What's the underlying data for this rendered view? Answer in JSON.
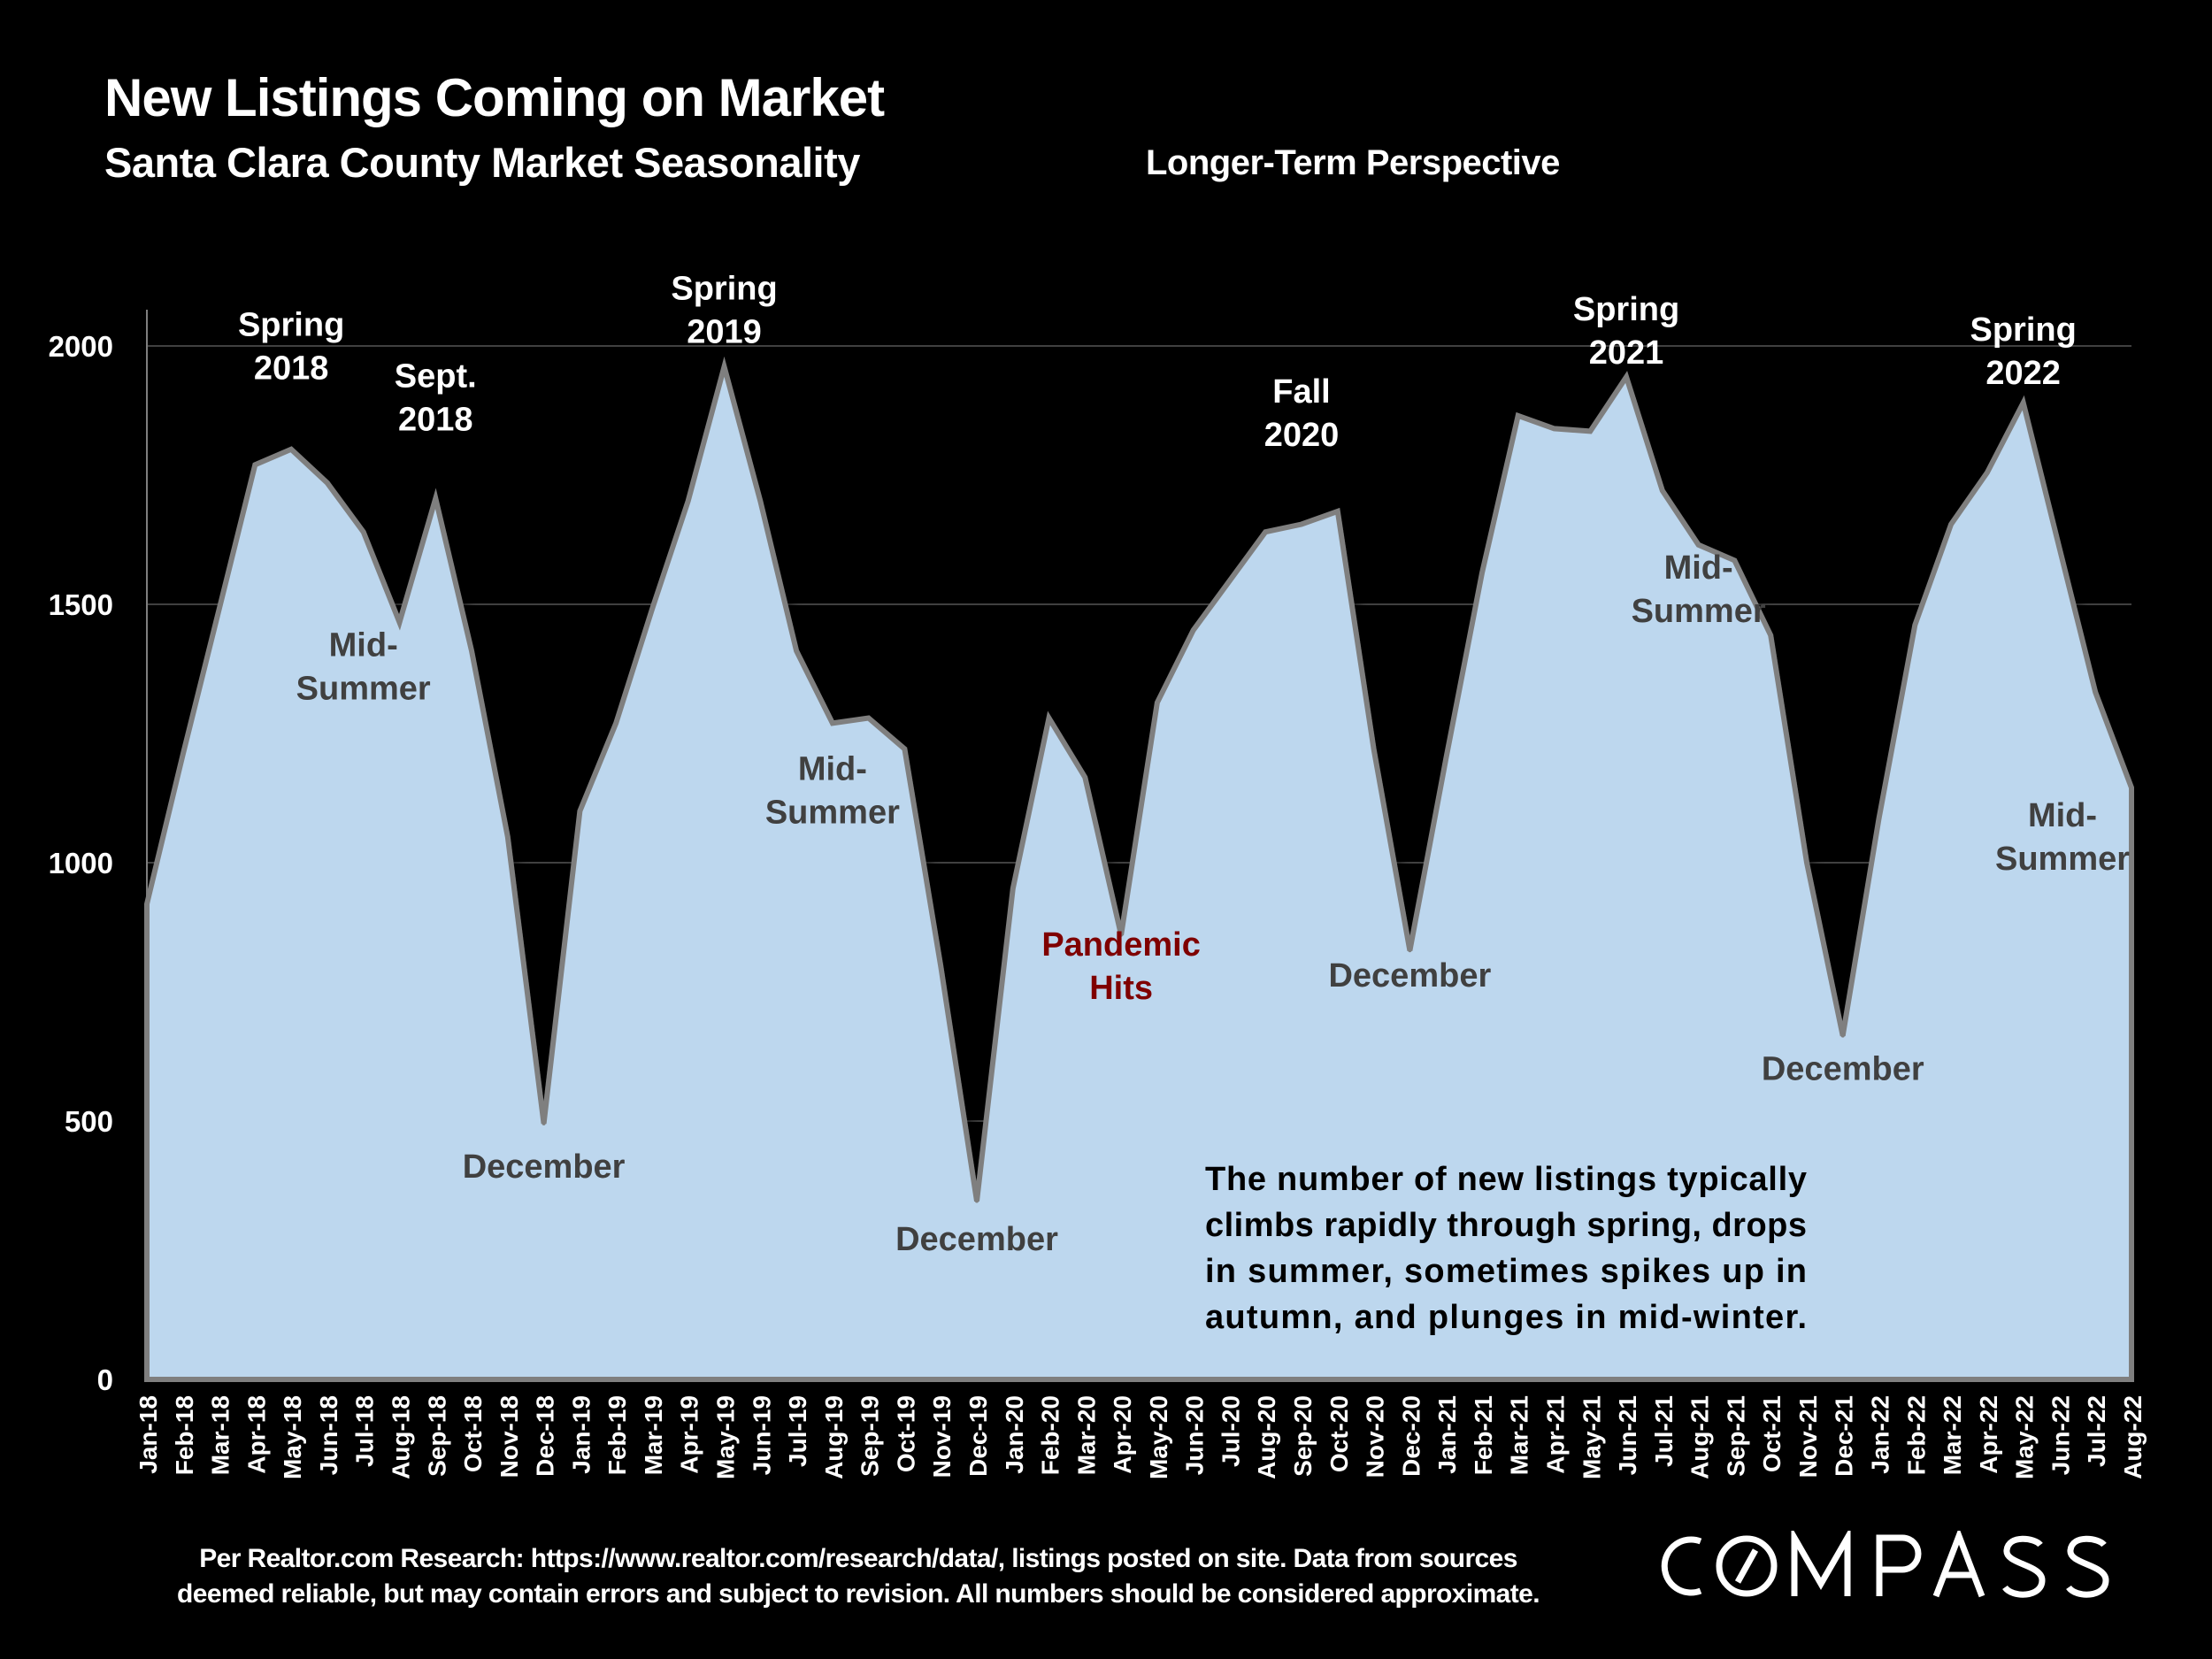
{
  "header": {
    "title": "New Listings Coming on Market",
    "subtitle": "Santa Clara County Market Seasonality",
    "perspective": "Longer-Term Perspective"
  },
  "footer": {
    "line1": "Per Realtor.com Research:  https://www.realtor.com/research/data/, listings posted on site. Data from sources",
    "line2": "deemed reliable, but may contain errors and subject to revision. All numbers should be considered approximate.",
    "logo_text": "COMPASS"
  },
  "colors": {
    "background": "#000000",
    "area_fill": "#BDD7EE",
    "area_line": "#7F7F7F",
    "annotation_white": "#FFFFFF",
    "annotation_dark": "#404040",
    "annotation_red": "#7F0000",
    "gridline": "#404040"
  },
  "chart_data": {
    "type": "area",
    "title": "New Listings Coming on Market",
    "subtitle": "Santa Clara County Market Seasonality",
    "xlabel": "",
    "ylabel": "",
    "ylim": [
      0,
      2000
    ],
    "yticks": [
      0,
      500,
      1000,
      1500,
      2000
    ],
    "grid": true,
    "categories": [
      "Jan-18",
      "Feb-18",
      "Mar-18",
      "Apr-18",
      "May-18",
      "Jun-18",
      "Jul-18",
      "Aug-18",
      "Sep-18",
      "Oct-18",
      "Nov-18",
      "Dec-18",
      "Jan-19",
      "Feb-19",
      "Mar-19",
      "Apr-19",
      "May-19",
      "Jun-19",
      "Jul-19",
      "Aug-19",
      "Sep-19",
      "Oct-19",
      "Nov-19",
      "Dec-19",
      "Jan-20",
      "Feb-20",
      "Mar-20",
      "Apr-20",
      "May-20",
      "Jun-20",
      "Jul-20",
      "Aug-20",
      "Sep-20",
      "Oct-20",
      "Nov-20",
      "Dec-20",
      "Jan-21",
      "Feb-21",
      "Mar-21",
      "Apr-21",
      "May-21",
      "Jun-21",
      "Jul-21",
      "Aug-21",
      "Sep-21",
      "Oct-21",
      "Nov-21",
      "Dec-21",
      "Jan-22",
      "Feb-22",
      "Mar-22",
      "Apr-22",
      "May-22",
      "Jun-22",
      "Jul-22",
      "Aug-22"
    ],
    "series": [
      {
        "name": "New Listings",
        "values": [
          920,
          1210,
          1490,
          1770,
          1800,
          1735,
          1640,
          1465,
          1705,
          1410,
          1050,
          495,
          1100,
          1270,
          1490,
          1700,
          1960,
          1700,
          1410,
          1270,
          1280,
          1220,
          800,
          345,
          950,
          1280,
          1165,
          860,
          1310,
          1450,
          1545,
          1640,
          1655,
          1680,
          1220,
          830,
          1200,
          1560,
          1865,
          1840,
          1835,
          1940,
          1720,
          1615,
          1585,
          1440,
          1000,
          665,
          1085,
          1460,
          1655,
          1755,
          1890,
          1610,
          1330,
          1145
        ]
      }
    ],
    "annotations": [
      {
        "lines": [
          "Spring",
          "2018"
        ],
        "month": "May-18",
        "value": 2020,
        "style": "white"
      },
      {
        "lines": [
          "Sept.",
          "2018"
        ],
        "month": "Sep-18",
        "value": 1920,
        "style": "white"
      },
      {
        "lines": [
          "Mid-",
          "Summer"
        ],
        "month": "Jul-18",
        "value": 1400,
        "style": "dark"
      },
      {
        "lines": [
          "December"
        ],
        "month": "Dec-18",
        "value": 390,
        "style": "dark"
      },
      {
        "lines": [
          "Spring",
          "2019"
        ],
        "month": "May-19",
        "value": 2090,
        "style": "white"
      },
      {
        "lines": [
          "Mid-",
          "Summer"
        ],
        "month": "Aug-19",
        "value": 1160,
        "style": "dark"
      },
      {
        "lines": [
          "December"
        ],
        "month": "Dec-19",
        "value": 250,
        "style": "dark"
      },
      {
        "lines": [
          "Pandemic",
          "Hits"
        ],
        "month": "Apr-20",
        "value": 820,
        "style": "red"
      },
      {
        "lines": [
          "Fall",
          "2020"
        ],
        "month": "Sep-20",
        "value": 1890,
        "style": "white"
      },
      {
        "lines": [
          "December"
        ],
        "month": "Dec-20",
        "value": 760,
        "style": "dark"
      },
      {
        "lines": [
          "Spring",
          "2021"
        ],
        "month": "Jun-21",
        "value": 2050,
        "style": "white"
      },
      {
        "lines": [
          "Mid-",
          "Summer"
        ],
        "month": "Aug-21",
        "value": 1550,
        "style": "dark"
      },
      {
        "lines": [
          "December"
        ],
        "month": "Dec-21",
        "value": 580,
        "style": "dark"
      },
      {
        "lines": [
          "Spring",
          "2022"
        ],
        "month": "May-22",
        "value": 2010,
        "style": "white"
      },
      {
        "lines": [
          "Mid-",
          "Summer"
        ],
        "month": "Jul-22",
        "value": 1070,
        "style": "dark"
      }
    ],
    "note_lines": [
      "The number of new listings typically",
      "climbs rapidly through spring, drops",
      "in summer, sometimes spikes up in",
      "autumn, and plunges in mid-winter."
    ]
  }
}
